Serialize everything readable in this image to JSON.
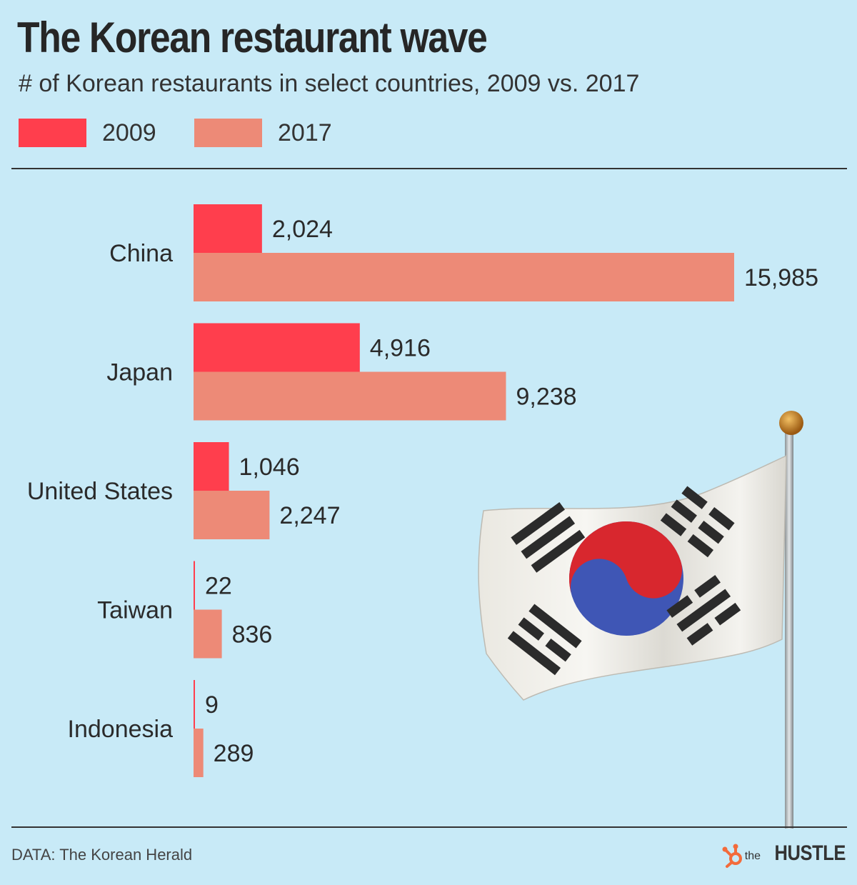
{
  "title": "The Korean restaurant wave",
  "subtitle": "# of Korean restaurants in select countries, 2009 vs. 2017",
  "legend": [
    {
      "label": "2009",
      "color": "#ff3e4d"
    },
    {
      "label": "2017",
      "color": "#ed8a77"
    }
  ],
  "source": "DATA: The Korean Herald",
  "brand": {
    "prefix": "the",
    "name": "HUSTLE",
    "icon": "hubspot-sprocket-icon",
    "icon_color": "#f36b3b"
  },
  "illustration": {
    "icon": "south-korea-flag-icon"
  },
  "chart_data": {
    "type": "bar",
    "orientation": "horizontal",
    "categories": [
      "China",
      "Japan",
      "United States",
      "Taiwan",
      "Indonesia"
    ],
    "series": [
      {
        "name": "2009",
        "color": "#ff3e4d",
        "values": [
          2024,
          4916,
          1046,
          22,
          9
        ],
        "labels": [
          "2,024",
          "4,916",
          "1,046",
          "22",
          "9"
        ]
      },
      {
        "name": "2017",
        "color": "#ed8a77",
        "values": [
          15985,
          9238,
          2247,
          836,
          289
        ],
        "labels": [
          "15,985",
          "9,238",
          "2,247",
          "836",
          "289"
        ]
      }
    ],
    "title": "The Korean restaurant wave",
    "xlabel": "",
    "ylabel": "",
    "xlim": [
      0,
      16000
    ],
    "grid": false,
    "legend": "top-left"
  }
}
